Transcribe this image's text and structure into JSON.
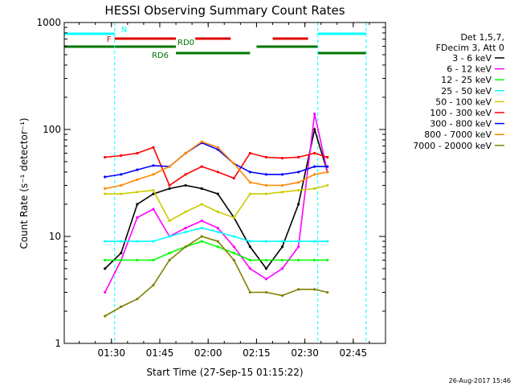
{
  "chart_data": {
    "type": "line",
    "title": "HESSI Observing Summary Count Rates",
    "xlabel": "Start Time (27-Sep-15 01:15:22)",
    "ylabel": "Count Rate (s⁻¹ detector⁻¹)",
    "yscale": "log",
    "ylim": [
      1,
      1000
    ],
    "xlim": [
      "01:15:22",
      "02:55:00"
    ],
    "x_ticks": [
      "01:30",
      "01:45",
      "02:00",
      "02:15",
      "02:30",
      "02:45"
    ],
    "y_ticks": [
      "1",
      "10",
      "100",
      "1000"
    ],
    "grid": false,
    "legend_placement": "right",
    "legend_header": [
      "Det 1,5,7,",
      "FDecim 3, Att 0"
    ],
    "timestamp": "26-Aug-2017 15:46",
    "x": [
      "01:28",
      "01:33",
      "01:38",
      "01:43",
      "01:48",
      "01:53",
      "01:58",
      "02:03",
      "02:08",
      "02:13",
      "02:18",
      "02:23",
      "02:28",
      "02:33",
      "02:37"
    ],
    "series": [
      {
        "name": "3 - 6 keV",
        "color": "#000000",
        "values": [
          5,
          7,
          20,
          25,
          28,
          30,
          28,
          25,
          15,
          8,
          5,
          8,
          20,
          100,
          40
        ]
      },
      {
        "name": "6 - 12 keV",
        "color": "#ff00ff",
        "values": [
          3,
          6,
          15,
          18,
          10,
          12,
          14,
          12,
          8,
          5,
          4,
          5,
          8,
          140,
          40
        ]
      },
      {
        "name": "12 - 25 keV",
        "color": "#00ff00",
        "values": [
          6,
          6,
          6,
          6,
          7,
          8,
          9,
          8,
          7,
          6,
          6,
          6,
          6,
          6,
          6
        ]
      },
      {
        "name": "25 - 50 keV",
        "color": "#00ffff",
        "values": [
          9,
          9,
          9,
          9,
          10,
          11,
          12,
          11,
          10,
          9,
          9,
          9,
          9,
          9,
          9
        ]
      },
      {
        "name": "50 - 100 keV",
        "color": "#cccc00",
        "values": [
          25,
          25,
          26,
          27,
          14,
          17,
          20,
          17,
          15,
          25,
          25,
          26,
          27,
          28,
          30
        ]
      },
      {
        "name": "100 - 300 keV",
        "color": "#ff0000",
        "values": [
          55,
          57,
          60,
          68,
          30,
          38,
          45,
          40,
          35,
          60,
          55,
          54,
          55,
          60,
          55
        ]
      },
      {
        "name": "300 - 800 keV",
        "color": "#0000ff",
        "values": [
          36,
          38,
          42,
          46,
          45,
          60,
          75,
          65,
          48,
          40,
          38,
          38,
          40,
          45,
          45
        ]
      },
      {
        "name": "800 - 7000 keV",
        "color": "#ff8800",
        "values": [
          28,
          30,
          34,
          38,
          45,
          60,
          77,
          68,
          48,
          32,
          30,
          30,
          32,
          38,
          40
        ]
      },
      {
        "name": "7000 - 20000 keV",
        "color": "#808000",
        "values": [
          1.8,
          2.2,
          2.6,
          3.5,
          6,
          8,
          10,
          9,
          6,
          3,
          3,
          2.8,
          3.2,
          3.2,
          3.0
        ]
      }
    ],
    "flags": [
      {
        "label": "N",
        "color": "#00ffff",
        "segments": [
          [
            "01:15:22",
            "01:31:00"
          ],
          [
            "02:34:00",
            "02:49:00"
          ]
        ]
      },
      {
        "label": "F",
        "color": "#dd0000",
        "segments": [
          [
            "01:31:00",
            "01:50:00"
          ],
          [
            "01:56:00",
            "02:07:00"
          ],
          [
            "02:20:00",
            "02:31:00"
          ]
        ]
      },
      {
        "label": "RD0",
        "color": "#007700",
        "segments": [
          [
            "01:15:22",
            "01:50:00"
          ],
          [
            "02:15:00",
            "02:34:00"
          ]
        ]
      },
      {
        "label": "RD6",
        "color": "#007700",
        "segments": [
          [
            "01:50:00",
            "02:13:00"
          ],
          [
            "02:34:00",
            "02:49:00"
          ]
        ]
      }
    ]
  }
}
